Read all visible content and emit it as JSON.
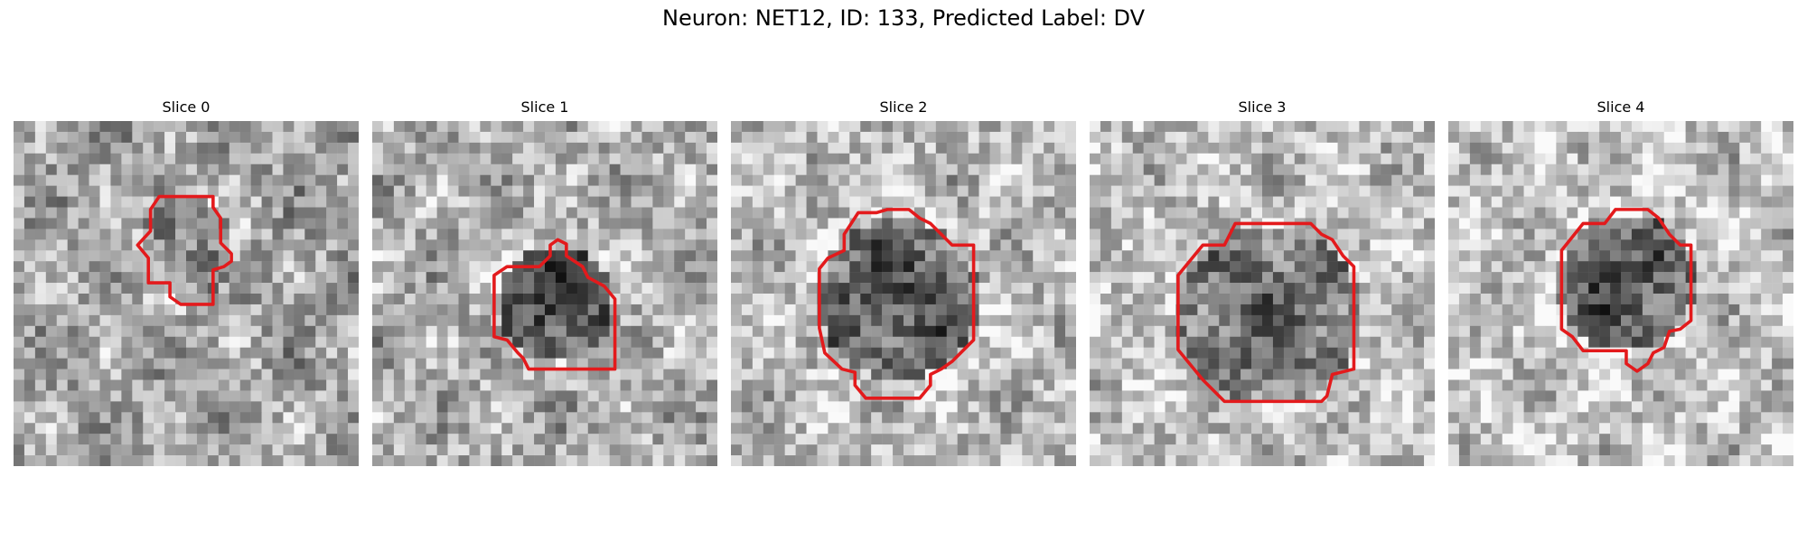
{
  "figure": {
    "title": "Neuron: NET12, ID: 133, Predicted Label: DV"
  },
  "colors": {
    "contour": "#e31a1c",
    "background": "#ffffff"
  },
  "panels": [
    {
      "title": "Slice 0"
    },
    {
      "title": "Slice 1"
    },
    {
      "title": "Slice 2"
    },
    {
      "title": "Slice 3"
    },
    {
      "title": "Slice 4"
    }
  ]
}
